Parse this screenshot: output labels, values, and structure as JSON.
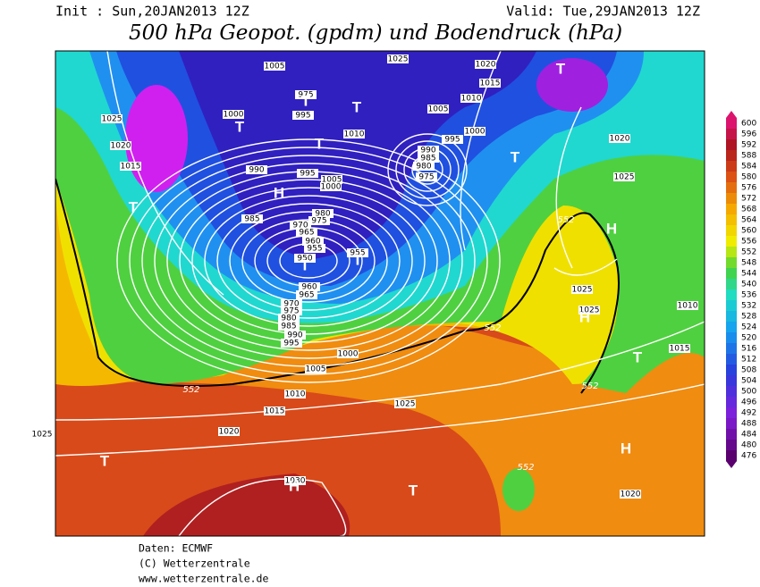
{
  "header": {
    "init": "Init : Sun,20JAN2013 12Z",
    "valid": "Valid: Tue,29JAN2013 12Z",
    "title": "500 hPa Geopot. (gpdm) und Bodendruck (hPa)"
  },
  "map": {
    "isobar_labels": [
      "1005",
      "1025",
      "1020",
      "1015",
      "1010",
      "1005",
      "1000",
      "995",
      "1025",
      "1020",
      "1015",
      "1000",
      "995",
      "975",
      "1010",
      "990",
      "995",
      "1005",
      "1000",
      "990",
      "985",
      "980",
      "975",
      "985",
      "980",
      "970",
      "975",
      "965",
      "960",
      "955",
      "950",
      "955",
      "960",
      "965",
      "970",
      "975",
      "980",
      "985",
      "990",
      "995",
      "1000",
      "1005",
      "1010",
      "1015",
      "1020",
      "1025",
      "1025",
      "1030",
      "1025",
      "1025",
      "1010",
      "1015",
      "1020",
      "1020",
      "1025"
    ],
    "contour_552_labels": [
      "552",
      "552",
      "552",
      "552",
      "552"
    ],
    "pressure_centers": [
      "T",
      "T",
      "T",
      "T",
      "T",
      "H",
      "T",
      "T",
      "H",
      "H",
      "T",
      "T",
      "T",
      "T",
      "H",
      "T",
      "H"
    ]
  },
  "colorbar": {
    "levels": [
      600,
      596,
      592,
      588,
      584,
      580,
      576,
      572,
      568,
      564,
      560,
      556,
      552,
      548,
      544,
      540,
      536,
      532,
      528,
      524,
      520,
      516,
      512,
      508,
      504,
      500,
      496,
      492,
      488,
      484,
      480,
      476
    ]
  },
  "footer": {
    "source": "Daten: ECMWF",
    "copyright": "(C) Wetterzentrale",
    "url": "www.wetterzentrale.de"
  }
}
